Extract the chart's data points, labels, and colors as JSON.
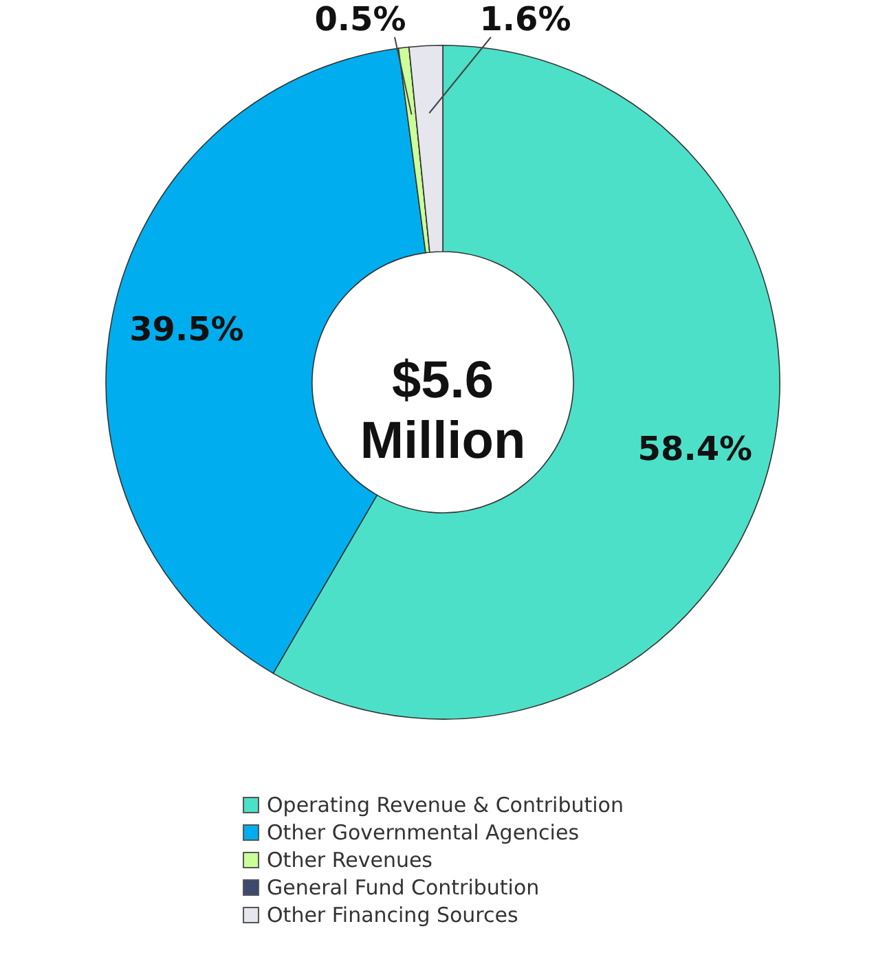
{
  "chart_data": {
    "type": "donut",
    "categories": [
      "Operating Revenue & Contribution",
      "Other Governmental Agencies",
      "Other Revenues",
      "General Fund Contribution",
      "Other Financing Sources"
    ],
    "values": [
      58.4,
      39.5,
      0.5,
      0,
      1.6
    ],
    "colors": [
      "#4de0c8",
      "#00aeef",
      "#ccff99",
      "#3b4a6e",
      "#e6e6ee"
    ],
    "value_labels": [
      "58.4%",
      "39.5%",
      "0.5%",
      null,
      "1.6%"
    ],
    "annotations": [
      "$5.6 Million"
    ],
    "legend": "bottom"
  }
}
